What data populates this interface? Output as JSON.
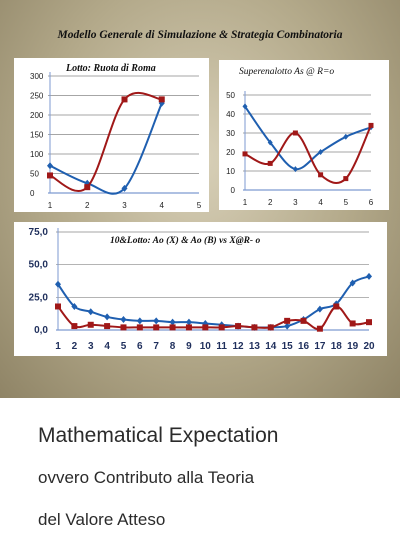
{
  "header": {
    "title": "Modello Generale di Simulazione & Strategia Combinatoria"
  },
  "charts_text": {
    "c1_title": "Lotto: Ruota di Roma",
    "c2_title": "Superenalotto As @ R=o",
    "c3_title": "10&Lotto: Ao (X) & Ao (B) vs X@R- o"
  },
  "book": {
    "title": "Mathematical Expectation",
    "subtitle1": "ovvero Contributo alla Teoria",
    "subtitle2": "del Valore Atteso"
  },
  "colors": {
    "blue": "#1f5fb0",
    "red": "#a01818"
  },
  "chart_data": [
    {
      "type": "line",
      "title": "Lotto: Ruota di Roma",
      "x": [
        1,
        2,
        3,
        4,
        5
      ],
      "xlim": [
        1,
        5
      ],
      "ylim": [
        0,
        300
      ],
      "yticks": [
        0,
        50,
        100,
        150,
        200,
        250,
        300
      ],
      "grid": true,
      "series": [
        {
          "color": "blue",
          "x": [
            1,
            2,
            3,
            4
          ],
          "values": [
            70,
            25,
            12,
            230
          ]
        },
        {
          "color": "red",
          "x": [
            1,
            2,
            3,
            4
          ],
          "values": [
            45,
            15,
            240,
            240
          ]
        }
      ]
    },
    {
      "type": "line",
      "title": "Superenalotto As @ R=o",
      "x": [
        1,
        2,
        3,
        4,
        5,
        6
      ],
      "xlim": [
        1,
        6
      ],
      "ylim": [
        0,
        50
      ],
      "yticks": [
        0,
        10,
        20,
        30,
        40,
        50
      ],
      "grid": true,
      "series": [
        {
          "color": "blue",
          "x": [
            1,
            2,
            3,
            4,
            5,
            6
          ],
          "values": [
            44,
            25,
            11,
            20,
            28,
            33
          ]
        },
        {
          "color": "red",
          "x": [
            1,
            2,
            3,
            4,
            5,
            6
          ],
          "values": [
            19,
            14,
            30,
            8,
            6,
            34
          ]
        }
      ]
    },
    {
      "type": "line",
      "title": "10&Lotto: Ao (X) & Ao (B) vs X@R- o",
      "x": [
        1,
        2,
        3,
        4,
        5,
        6,
        7,
        8,
        9,
        10,
        11,
        12,
        13,
        14,
        15,
        16,
        17,
        18,
        19,
        20
      ],
      "xlim": [
        1,
        20
      ],
      "ylim": [
        0,
        75
      ],
      "yticks": [
        "0,0",
        "25,0",
        "50,0",
        "75,0"
      ],
      "ytick_values": [
        0,
        25,
        50,
        75
      ],
      "grid": true,
      "series": [
        {
          "color": "blue",
          "x": [
            1,
            2,
            3,
            4,
            5,
            6,
            7,
            8,
            9,
            10,
            11,
            12,
            13,
            14,
            15,
            16,
            17,
            18,
            19,
            20
          ],
          "values": [
            35,
            18,
            14,
            10,
            8,
            7,
            7,
            6,
            6,
            5,
            4,
            3,
            2,
            2,
            3,
            8,
            16,
            20,
            36,
            41
          ]
        },
        {
          "color": "red",
          "x": [
            1,
            2,
            3,
            4,
            5,
            6,
            7,
            8,
            9,
            10,
            11,
            12,
            13,
            14,
            15,
            16,
            17,
            18,
            19,
            20
          ],
          "values": [
            18,
            3,
            4,
            3,
            2,
            2,
            2,
            2,
            2,
            2,
            2,
            3,
            2,
            2,
            7,
            7,
            1,
            18,
            5,
            6
          ]
        }
      ]
    }
  ]
}
